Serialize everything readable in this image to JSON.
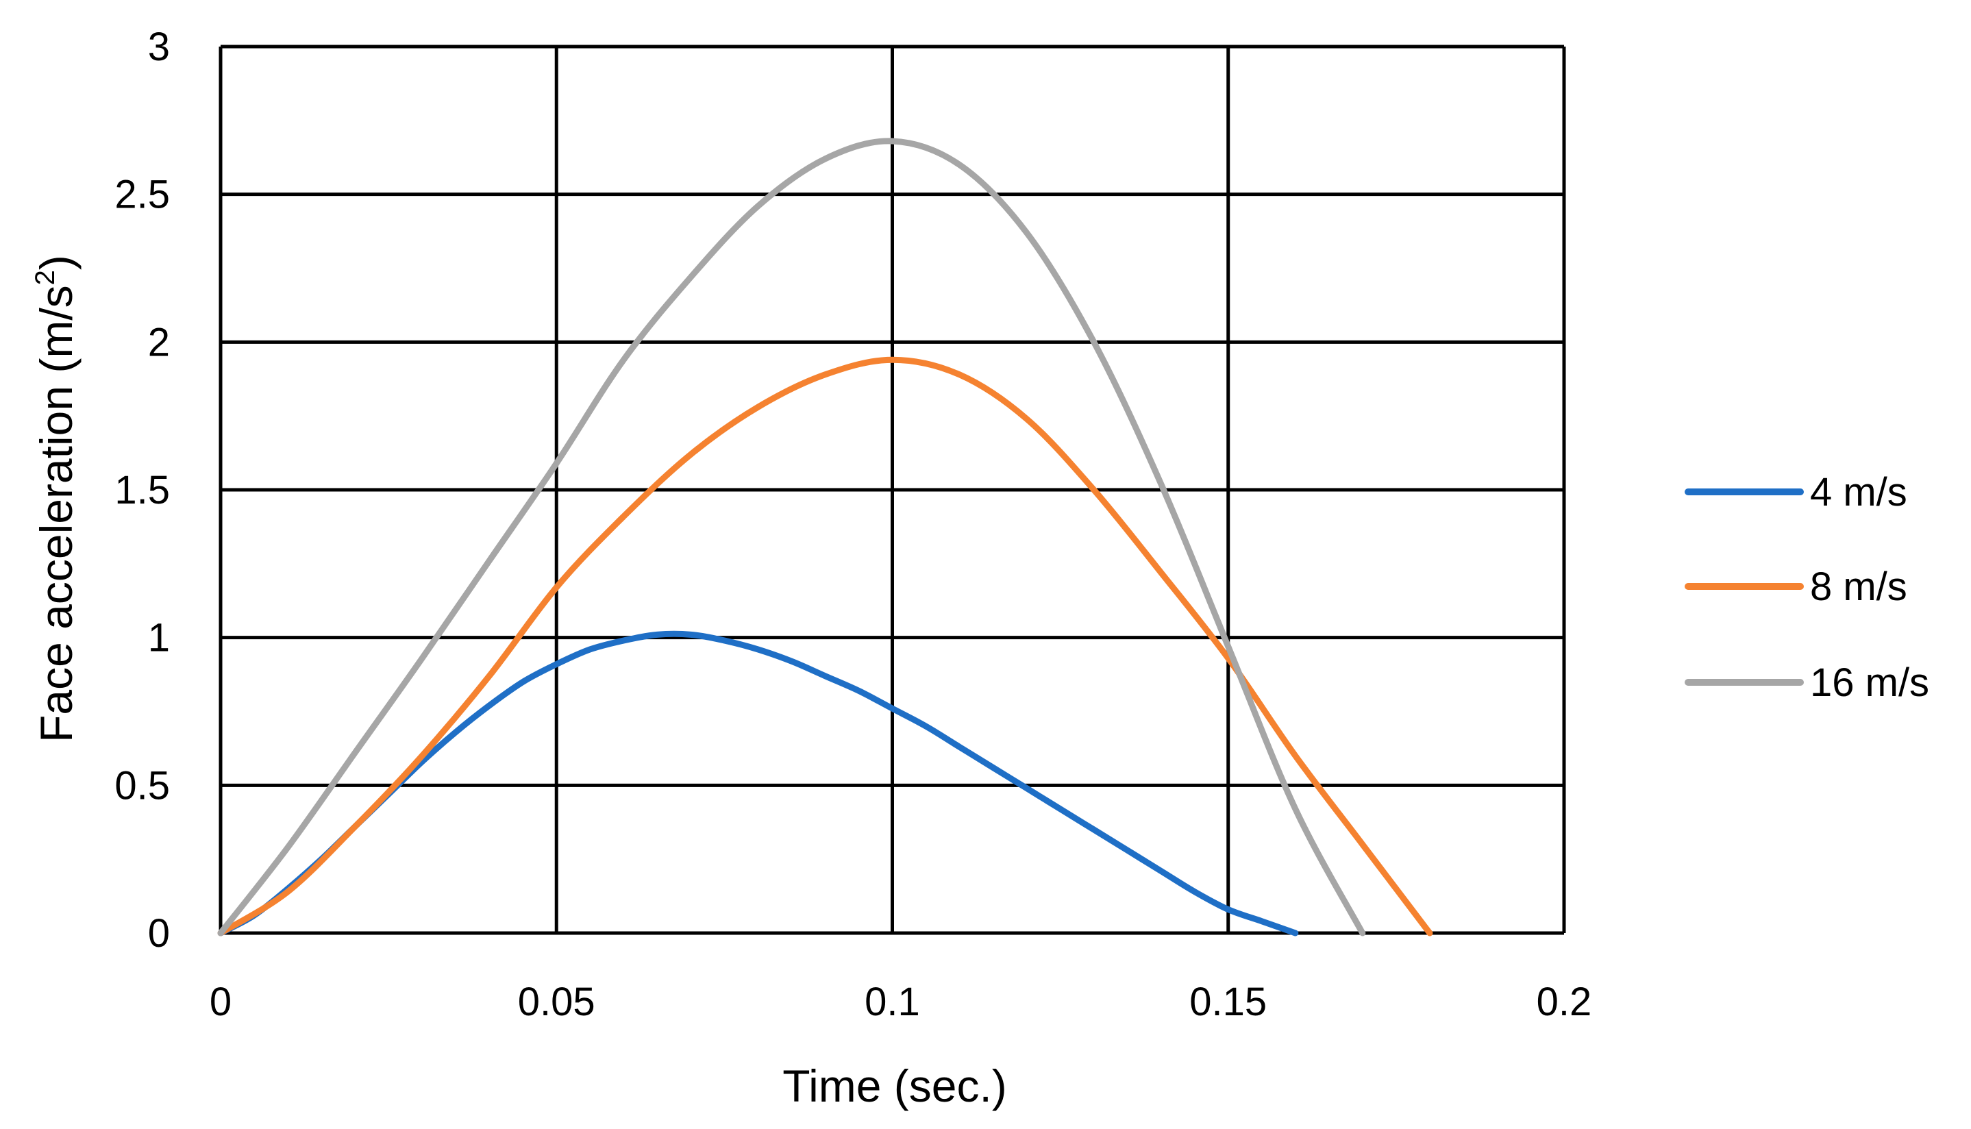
{
  "chart_data": {
    "type": "line",
    "title": "",
    "xlabel": "Time (sec.)",
    "ylabel_main": "Face acceleration (m/s",
    "ylabel_sup": "2",
    "ylabel_close": ")",
    "xlim": [
      0,
      0.2
    ],
    "ylim": [
      0,
      3
    ],
    "x_ticks": [
      0,
      0.05,
      0.1,
      0.15,
      0.2
    ],
    "x_tick_labels": [
      "0",
      "0.05",
      "0.1",
      "0.15",
      "0.2"
    ],
    "y_ticks": [
      0,
      0.5,
      1,
      1.5,
      2,
      2.5,
      3
    ],
    "y_tick_labels": [
      "0",
      "0.5",
      "1",
      "1.5",
      "2",
      "2.5",
      "3"
    ],
    "grid": true,
    "legend_position": "right",
    "series": [
      {
        "name": "4 m/s",
        "color": "#1f6fc6",
        "x": [
          0,
          0.005,
          0.01,
          0.015,
          0.02,
          0.025,
          0.03,
          0.035,
          0.04,
          0.045,
          0.05,
          0.055,
          0.06,
          0.065,
          0.07,
          0.075,
          0.08,
          0.085,
          0.09,
          0.095,
          0.1,
          0.105,
          0.11,
          0.115,
          0.12,
          0.125,
          0.13,
          0.135,
          0.14,
          0.145,
          0.15,
          0.155,
          0.16
        ],
        "y": [
          0,
          0.06,
          0.15,
          0.25,
          0.36,
          0.47,
          0.58,
          0.68,
          0.77,
          0.85,
          0.91,
          0.96,
          0.99,
          1.01,
          1.01,
          0.99,
          0.96,
          0.92,
          0.87,
          0.82,
          0.76,
          0.7,
          0.63,
          0.56,
          0.49,
          0.42,
          0.35,
          0.28,
          0.21,
          0.14,
          0.08,
          0.04,
          0
        ]
      },
      {
        "name": "8 m/s",
        "color": "#f58230",
        "x": [
          0,
          0.01,
          0.02,
          0.03,
          0.04,
          0.05,
          0.06,
          0.07,
          0.08,
          0.09,
          0.1,
          0.11,
          0.12,
          0.13,
          0.14,
          0.15,
          0.16,
          0.17,
          0.18
        ],
        "y": [
          0,
          0.14,
          0.36,
          0.6,
          0.87,
          1.17,
          1.41,
          1.62,
          1.78,
          1.89,
          1.94,
          1.89,
          1.74,
          1.5,
          1.22,
          0.93,
          0.6,
          0.3,
          0
        ]
      },
      {
        "name": "16 m/s",
        "color": "#a6a6a6",
        "x": [
          0,
          0.01,
          0.02,
          0.03,
          0.04,
          0.05,
          0.06,
          0.07,
          0.08,
          0.09,
          0.1,
          0.11,
          0.12,
          0.13,
          0.14,
          0.15,
          0.16,
          0.17
        ],
        "y": [
          0,
          0.29,
          0.61,
          0.93,
          1.26,
          1.59,
          1.94,
          2.22,
          2.46,
          2.62,
          2.68,
          2.6,
          2.37,
          2.0,
          1.52,
          0.97,
          0.42,
          0
        ]
      }
    ]
  }
}
